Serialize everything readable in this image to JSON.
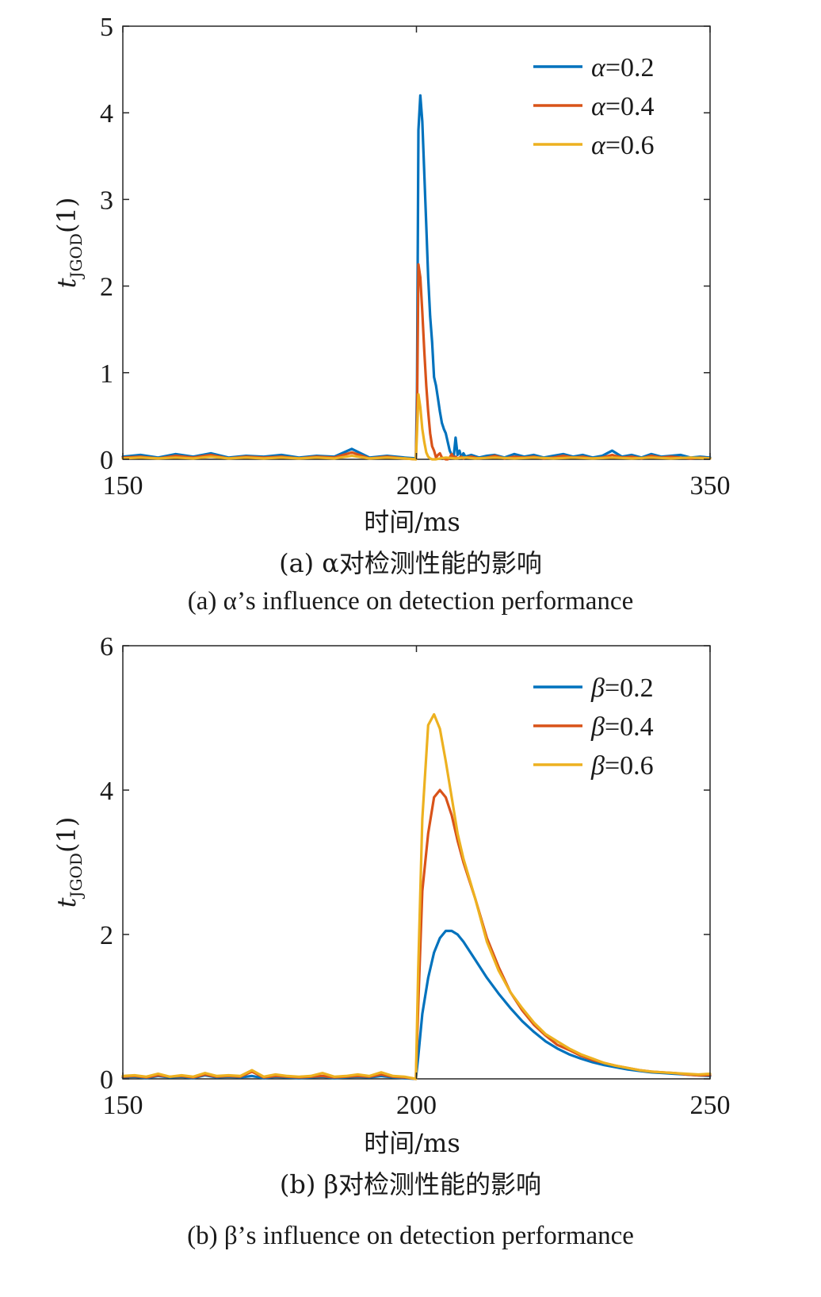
{
  "chart_data": [
    {
      "type": "line",
      "title": "",
      "caption_cn": "(a) α对检测性能的影响",
      "caption_en": "(a) α’s influence on detection performance",
      "xlabel": "时间/ms",
      "ylabel": "t_JGOD(1)",
      "ylabel_main": "t",
      "ylabel_sub": "JGOD",
      "ylabel_tail": "(1)",
      "xlim": [
        150,
        350
      ],
      "ylim": [
        0,
        5
      ],
      "xticks": [
        150,
        200,
        350
      ],
      "yticks": [
        0,
        1,
        2,
        3,
        4,
        5
      ],
      "x_tick_labels": [
        "150",
        "200",
        "350"
      ],
      "y_tick_labels": [
        "0",
        "1",
        "2",
        "3",
        "4",
        "5"
      ],
      "x_scale": "piecewise",
      "legend_position": "top-right",
      "grid": false,
      "series": [
        {
          "name": "α=0.2",
          "symbol": "α",
          "value_text": "=0.2",
          "color": "#0072BD",
          "x": [
            150,
            153,
            156,
            159,
            162,
            165,
            168,
            171,
            174,
            177,
            180,
            183,
            186,
            189,
            192,
            195,
            198,
            199.9,
            200.3,
            201,
            202,
            203,
            204,
            205,
            206,
            207,
            208,
            209,
            210,
            211,
            212,
            213,
            214,
            215,
            216,
            217,
            218,
            219,
            220,
            221,
            222,
            223,
            224,
            225,
            228,
            232,
            236,
            240,
            245,
            250,
            255,
            260,
            265,
            270,
            275,
            280,
            285,
            290,
            295,
            300,
            305,
            310,
            315,
            320,
            325,
            330,
            335,
            340,
            345,
            350
          ],
          "values": [
            0.03,
            0.05,
            0.02,
            0.06,
            0.03,
            0.07,
            0.02,
            0.04,
            0.03,
            0.05,
            0.02,
            0.04,
            0.03,
            0.12,
            0.02,
            0.04,
            0.02,
            0.01,
            0.8,
            3.8,
            4.2,
            3.9,
            3.3,
            2.7,
            2.1,
            1.65,
            1.35,
            0.95,
            0.85,
            0.7,
            0.55,
            0.42,
            0.35,
            0.3,
            0.2,
            0.1,
            0.05,
            0.02,
            0.25,
            0.05,
            0.1,
            0.02,
            0.07,
            0.03,
            0.05,
            0.02,
            0.04,
            0.05,
            0.02,
            0.06,
            0.03,
            0.05,
            0.02,
            0.04,
            0.06,
            0.03,
            0.05,
            0.02,
            0.04,
            0.1,
            0.03,
            0.05,
            0.02,
            0.06,
            0.03,
            0.04,
            0.05,
            0.02,
            0.03,
            0.02
          ]
        },
        {
          "name": "α=0.4",
          "symbol": "α",
          "value_text": "=0.4",
          "color": "#D95319",
          "x": [
            150,
            153,
            156,
            159,
            162,
            165,
            168,
            171,
            174,
            177,
            180,
            183,
            186,
            189,
            192,
            195,
            198,
            199.9,
            200.3,
            201,
            202,
            203,
            204,
            205,
            206,
            207,
            208,
            209,
            210,
            211,
            212,
            213,
            214,
            215,
            216,
            217,
            218,
            219,
            220,
            221,
            222,
            223,
            224,
            225,
            228,
            232,
            236,
            240,
            245,
            250,
            255,
            260,
            265,
            270,
            275,
            280,
            285,
            290,
            295,
            300,
            305,
            310,
            315,
            320,
            325,
            330,
            335,
            340,
            345,
            350
          ],
          "values": [
            0.02,
            0.03,
            0.01,
            0.04,
            0.02,
            0.05,
            0.01,
            0.03,
            0.02,
            0.03,
            0.01,
            0.03,
            0.02,
            0.08,
            0.01,
            0.03,
            0.01,
            0.0,
            0.5,
            2.25,
            2.1,
            1.7,
            1.25,
            0.85,
            0.55,
            0.3,
            0.15,
            0.1,
            0.02,
            0.05,
            0.07,
            0.02,
            0.01,
            0.0,
            0.0,
            0.02,
            0.06,
            0.02,
            0.03,
            0.01,
            0.02,
            0.03,
            0.01,
            0.02,
            0.03,
            0.01,
            0.02,
            0.04,
            0.01,
            0.03,
            0.02,
            0.03,
            0.01,
            0.02,
            0.04,
            0.02,
            0.03,
            0.01,
            0.02,
            0.05,
            0.02,
            0.03,
            0.01,
            0.04,
            0.02,
            0.03,
            0.02,
            0.01,
            0.02,
            0.01
          ]
        },
        {
          "name": "α=0.6",
          "symbol": "α",
          "value_text": "=0.6",
          "color": "#EDB120",
          "x": [
            150,
            153,
            156,
            159,
            162,
            165,
            168,
            171,
            174,
            177,
            180,
            183,
            186,
            189,
            192,
            195,
            198,
            199.9,
            200.3,
            201,
            202,
            203,
            204,
            205,
            206,
            207,
            208,
            209,
            210,
            212,
            215,
            220,
            225,
            230,
            240,
            250,
            260,
            270,
            280,
            290,
            300,
            310,
            320,
            330,
            340,
            350
          ],
          "values": [
            0.01,
            0.02,
            0.01,
            0.02,
            0.01,
            0.03,
            0.01,
            0.02,
            0.01,
            0.02,
            0.01,
            0.02,
            0.01,
            0.04,
            0.01,
            0.02,
            0.01,
            0.0,
            0.3,
            0.75,
            0.6,
            0.35,
            0.2,
            0.08,
            0.03,
            0.01,
            0.0,
            0.0,
            0.0,
            0.01,
            0.02,
            0.01,
            0.02,
            0.01,
            0.02,
            0.01,
            0.02,
            0.01,
            0.02,
            0.01,
            0.02,
            0.01,
            0.02,
            0.01,
            0.02,
            0.01
          ]
        }
      ]
    },
    {
      "type": "line",
      "title": "",
      "caption_cn": "(b) β对检测性能的影响",
      "caption_en": "(b) β’s influence on detection performance",
      "xlabel": "时间/ms",
      "ylabel": "t_JGOD(1)",
      "ylabel_main": "t",
      "ylabel_sub": "JGOD",
      "ylabel_tail": "(1)",
      "xlim": [
        150,
        250
      ],
      "ylim": [
        0,
        6
      ],
      "xticks": [
        150,
        200,
        250
      ],
      "yticks": [
        0,
        2,
        4,
        6
      ],
      "x_tick_labels": [
        "150",
        "200",
        "250"
      ],
      "y_tick_labels": [
        "0",
        "2",
        "4",
        "6"
      ],
      "x_scale": "linear",
      "legend_position": "top-right",
      "grid": false,
      "series": [
        {
          "name": "β=0.2",
          "symbol": "β",
          "value_text": "=0.2",
          "color": "#0072BD",
          "x": [
            150,
            152,
            154,
            156,
            158,
            160,
            162,
            164,
            166,
            168,
            170,
            172,
            174,
            176,
            178,
            180,
            182,
            184,
            186,
            188,
            190,
            192,
            194,
            196,
            198,
            199.9,
            200.3,
            201,
            202,
            203,
            204,
            205,
            206,
            207,
            208,
            210,
            212,
            214,
            216,
            218,
            220,
            222,
            224,
            226,
            228,
            230,
            232,
            234,
            236,
            238,
            240,
            242,
            244,
            246,
            248,
            250
          ],
          "values": [
            0.02,
            0.03,
            0.01,
            0.04,
            0.02,
            0.03,
            0.01,
            0.05,
            0.02,
            0.03,
            0.02,
            0.04,
            0.01,
            0.03,
            0.02,
            0.01,
            0.02,
            0.03,
            0.01,
            0.02,
            0.03,
            0.02,
            0.04,
            0.02,
            0.01,
            0.0,
            0.3,
            0.9,
            1.4,
            1.75,
            1.95,
            2.05,
            2.05,
            2.0,
            1.9,
            1.65,
            1.4,
            1.18,
            0.98,
            0.8,
            0.65,
            0.52,
            0.42,
            0.34,
            0.28,
            0.23,
            0.19,
            0.16,
            0.13,
            0.11,
            0.09,
            0.08,
            0.07,
            0.06,
            0.05,
            0.04
          ]
        },
        {
          "name": "β=0.4",
          "symbol": "β",
          "value_text": "=0.4",
          "color": "#D95319",
          "x": [
            150,
            152,
            154,
            156,
            158,
            160,
            162,
            164,
            166,
            168,
            170,
            172,
            174,
            176,
            178,
            180,
            182,
            184,
            186,
            188,
            190,
            192,
            194,
            196,
            198,
            199.9,
            200.3,
            201,
            202,
            203,
            204,
            205,
            206,
            207,
            208,
            210,
            212,
            214,
            216,
            218,
            220,
            222,
            224,
            226,
            228,
            230,
            232,
            234,
            236,
            238,
            240,
            242,
            244,
            246,
            248,
            250
          ],
          "values": [
            0.03,
            0.04,
            0.02,
            0.05,
            0.03,
            0.04,
            0.02,
            0.06,
            0.03,
            0.04,
            0.03,
            0.1,
            0.02,
            0.04,
            0.03,
            0.02,
            0.03,
            0.04,
            0.02,
            0.03,
            0.04,
            0.03,
            0.06,
            0.03,
            0.02,
            0.0,
            1.0,
            2.6,
            3.4,
            3.9,
            4.0,
            3.9,
            3.65,
            3.3,
            3.0,
            2.5,
            1.95,
            1.55,
            1.2,
            0.95,
            0.75,
            0.6,
            0.47,
            0.4,
            0.32,
            0.26,
            0.22,
            0.18,
            0.15,
            0.12,
            0.1,
            0.09,
            0.08,
            0.06,
            0.05,
            0.05
          ]
        },
        {
          "name": "β=0.6",
          "symbol": "β",
          "value_text": "=0.6",
          "color": "#EDB120",
          "x": [
            150,
            152,
            154,
            156,
            158,
            160,
            162,
            164,
            166,
            168,
            170,
            172,
            174,
            176,
            178,
            180,
            182,
            184,
            186,
            188,
            190,
            192,
            194,
            196,
            198,
            199.9,
            200.3,
            201,
            202,
            203,
            204,
            205,
            206,
            207,
            208,
            210,
            212,
            214,
            216,
            218,
            220,
            222,
            224,
            226,
            228,
            230,
            232,
            234,
            236,
            238,
            240,
            242,
            244,
            246,
            248,
            250
          ],
          "values": [
            0.04,
            0.05,
            0.03,
            0.07,
            0.03,
            0.05,
            0.03,
            0.08,
            0.04,
            0.05,
            0.04,
            0.12,
            0.03,
            0.06,
            0.04,
            0.03,
            0.04,
            0.08,
            0.03,
            0.04,
            0.06,
            0.04,
            0.09,
            0.04,
            0.03,
            0.0,
            1.5,
            3.6,
            4.9,
            5.05,
            4.85,
            4.4,
            3.9,
            3.4,
            3.05,
            2.5,
            1.9,
            1.5,
            1.2,
            0.98,
            0.78,
            0.62,
            0.52,
            0.42,
            0.34,
            0.28,
            0.22,
            0.18,
            0.15,
            0.12,
            0.1,
            0.09,
            0.08,
            0.07,
            0.06,
            0.07
          ]
        }
      ]
    }
  ]
}
